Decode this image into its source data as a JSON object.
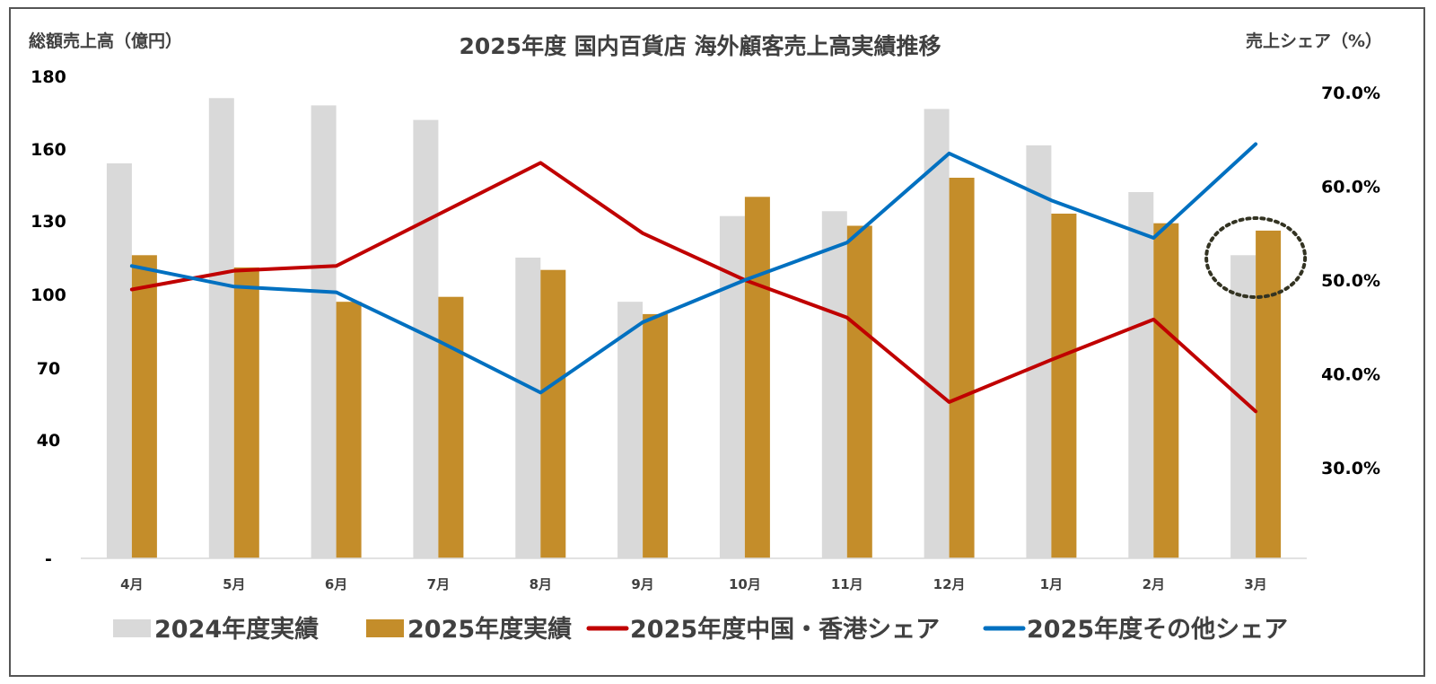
{
  "chart_data": {
    "type": "bar",
    "title": "2025年度 国内百貨店 海外顧客売上高実績推移",
    "ylabel": "総額売上高（億円）",
    "y2label": "売上シェア（%）",
    "y_ticks": [
      "-",
      "40",
      "70",
      "100",
      "130",
      "160",
      "180"
    ],
    "y2_ticks": [
      "30.0%",
      "40.0%",
      "50.0%",
      "60.0%",
      "70.0%"
    ],
    "categories": [
      "4月",
      "5月",
      "6月",
      "7月",
      "8月",
      "9月",
      "10月",
      "11月",
      "12月",
      "1月",
      "2月",
      "3月"
    ],
    "series": [
      {
        "name": "2024年度実績",
        "kind": "bar",
        "axis": "left",
        "color": "#d9d9d9",
        "values": [
          154,
          174,
          172,
          168,
          115,
          97,
          132,
          134,
          171,
          161,
          142,
          116
        ]
      },
      {
        "name": "2025年度実績",
        "kind": "bar",
        "axis": "left",
        "color": "#c48d2a",
        "values": [
          116,
          111,
          97,
          99,
          110,
          92,
          140,
          128,
          148,
          133,
          129,
          126
        ]
      },
      {
        "name": "2025年度中国・香港シェア",
        "kind": "line",
        "axis": "right",
        "color": "#c00000",
        "values": [
          49.0,
          51.0,
          51.5,
          57.0,
          62.5,
          55.0,
          50.0,
          46.0,
          37.0,
          41.5,
          45.8,
          36.0
        ]
      },
      {
        "name": "2025年度その他シェア",
        "kind": "line",
        "axis": "right",
        "color": "#0070c0",
        "values": [
          51.5,
          49.3,
          48.7,
          43.5,
          38.0,
          45.5,
          50.0,
          54.0,
          63.5,
          58.5,
          54.5,
          64.5
        ]
      }
    ],
    "legend_position": "bottom",
    "grid": false,
    "highlight": {
      "category": "3月",
      "shape": "dotted-circle",
      "color": "#333322"
    }
  }
}
